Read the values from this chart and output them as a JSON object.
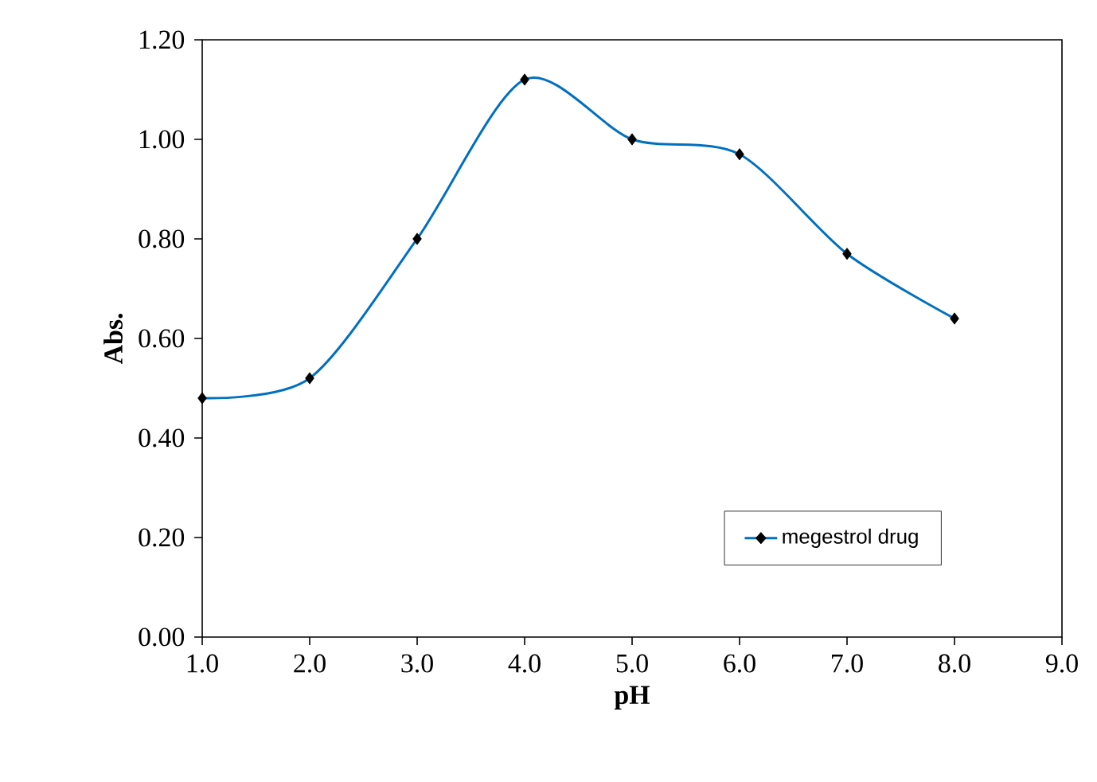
{
  "chart_data": {
    "type": "line",
    "xlabel": "pH",
    "ylabel": "Abs.",
    "x": [
      1,
      2,
      3,
      4,
      5,
      6,
      7,
      8
    ],
    "series": [
      {
        "name": "megestrol drug",
        "color": "#0070c0",
        "values": [
          0.48,
          0.52,
          0.8,
          1.12,
          1.0,
          0.97,
          0.77,
          0.64
        ]
      }
    ],
    "xlim": [
      1,
      9
    ],
    "xticks": [
      {
        "value": 1,
        "label": "1.0"
      },
      {
        "value": 2,
        "label": "2.0"
      },
      {
        "value": 3,
        "label": "3.0"
      },
      {
        "value": 4,
        "label": "4.0"
      },
      {
        "value": 5,
        "label": "5.0"
      },
      {
        "value": 6,
        "label": "6.0"
      },
      {
        "value": 7,
        "label": "7.0"
      },
      {
        "value": 8,
        "label": "8.0"
      },
      {
        "value": 9,
        "label": "9.0"
      }
    ],
    "ylim": [
      0,
      1.2
    ],
    "yticks": [
      {
        "value": 0,
        "label": "0.00"
      },
      {
        "value": 0.2,
        "label": "0.20"
      },
      {
        "value": 0.4,
        "label": "0.40"
      },
      {
        "value": 0.6,
        "label": "0.60"
      },
      {
        "value": 0.8,
        "label": "0.80"
      },
      {
        "value": 1.0,
        "label": "1.00"
      },
      {
        "value": 1.2,
        "label": "1.20"
      }
    ],
    "grid": false,
    "legend": "bottom right",
    "marker": "diamond",
    "line_style": "solid"
  }
}
